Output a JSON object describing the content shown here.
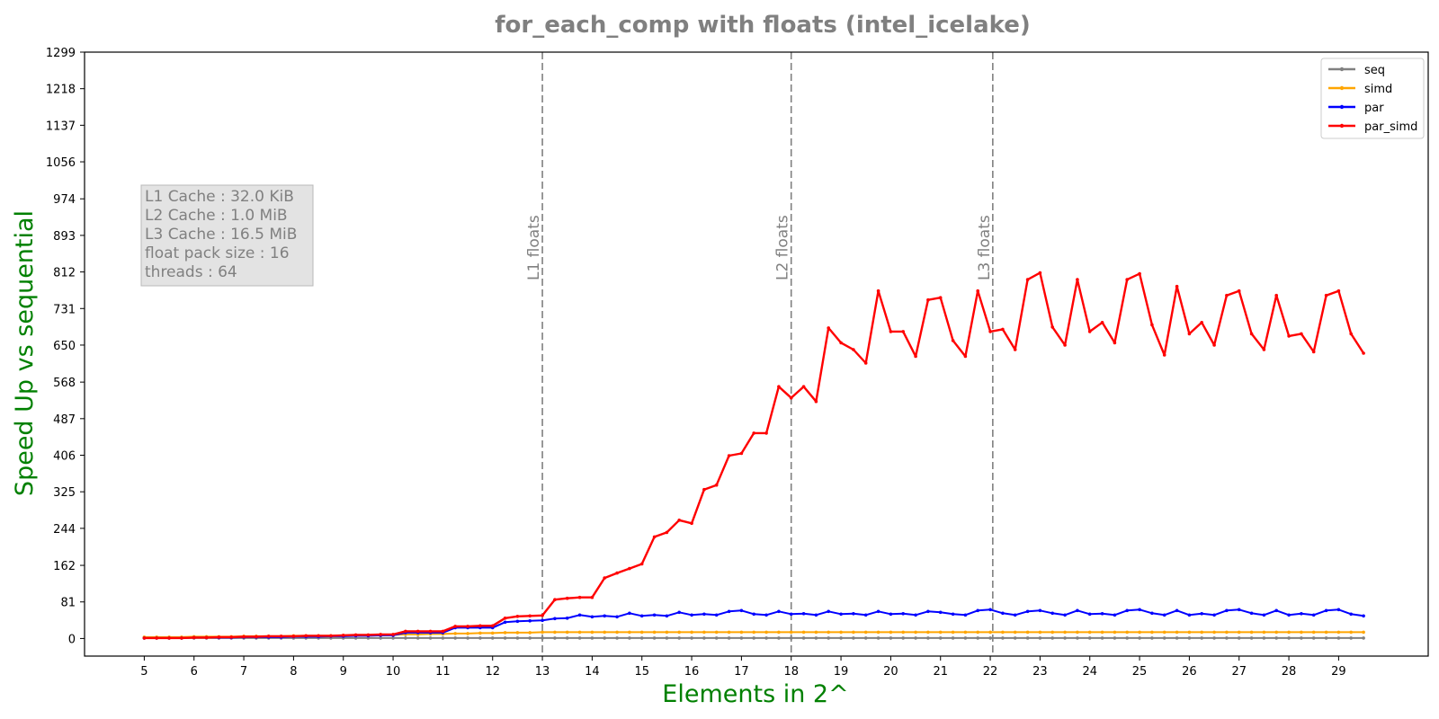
{
  "chart_data": {
    "type": "line",
    "title": "for_each_comp with floats  (intel_icelake)",
    "xlabel": "Elements in 2^",
    "ylabel": "Speed Up vs sequential",
    "xlim": [
      3.8,
      30.8
    ],
    "ylim": [
      -39,
      1299
    ],
    "x_ticks": [
      5,
      6,
      7,
      8,
      9,
      10,
      11,
      12,
      13,
      14,
      15,
      16,
      17,
      18,
      19,
      20,
      21,
      22,
      23,
      24,
      25,
      26,
      27,
      28,
      29
    ],
    "y_ticks": [
      0,
      81,
      162,
      244,
      325,
      406,
      487,
      568,
      650,
      731,
      812,
      893,
      974,
      1056,
      1137,
      1218,
      1299
    ],
    "x": [
      5.0,
      5.25,
      5.5,
      5.75,
      6.0,
      6.25,
      6.5,
      6.75,
      7.0,
      7.25,
      7.5,
      7.75,
      8.0,
      8.25,
      8.5,
      8.75,
      9.0,
      9.25,
      9.5,
      9.75,
      10.0,
      10.25,
      10.5,
      10.75,
      11.0,
      11.25,
      11.5,
      11.75,
      12.0,
      12.25,
      12.5,
      12.75,
      13.0,
      13.25,
      13.5,
      13.75,
      14.0,
      14.25,
      14.5,
      14.75,
      15.0,
      15.25,
      15.5,
      15.75,
      16.0,
      16.25,
      16.5,
      16.75,
      17.0,
      17.25,
      17.5,
      17.75,
      18.0,
      18.25,
      18.5,
      18.75,
      19.0,
      19.25,
      19.5,
      19.75,
      20.0,
      20.25,
      20.5,
      20.75,
      21.0,
      21.25,
      21.5,
      21.75,
      22.0,
      22.25,
      22.5,
      22.75,
      23.0,
      23.25,
      23.5,
      23.75,
      24.0,
      24.25,
      24.5,
      24.75,
      25.0,
      25.25,
      25.5,
      25.75,
      26.0,
      26.25,
      26.5,
      26.75,
      27.0,
      27.25,
      27.5,
      27.75,
      28.0,
      28.25,
      28.5,
      28.75,
      29.0,
      29.25,
      29.5
    ],
    "series": [
      {
        "name": "seq",
        "color": "#808080",
        "values": [
          1,
          1,
          1,
          1,
          1,
          1,
          1,
          1,
          1,
          1,
          1,
          1,
          1,
          1,
          1,
          1,
          1,
          1,
          1,
          1,
          1,
          1,
          1,
          1,
          1,
          1,
          1,
          1,
          1,
          1,
          1,
          1,
          1,
          1,
          1,
          1,
          1,
          1,
          1,
          1,
          1,
          1,
          1,
          1,
          1,
          1,
          1,
          1,
          1,
          1,
          1,
          1,
          1,
          1,
          1,
          1,
          1,
          1,
          1,
          1,
          1,
          1,
          1,
          1,
          1,
          1,
          1,
          1,
          1,
          1,
          1,
          1,
          1,
          1,
          1,
          1,
          1,
          1,
          1,
          1,
          1,
          1,
          1,
          1,
          1,
          1,
          1,
          1,
          1,
          1,
          1,
          1,
          1,
          1,
          1,
          1,
          1,
          1,
          1
        ]
      },
      {
        "name": "simd",
        "color": "#FFA500",
        "values": [
          3,
          3,
          3,
          3,
          4,
          4,
          4,
          4,
          5,
          5,
          5,
          5,
          6,
          6,
          6,
          6,
          7,
          7,
          7,
          7,
          8,
          9,
          9,
          10,
          10,
          11,
          11,
          12,
          12,
          13,
          13,
          13,
          14,
          14,
          14,
          14,
          14,
          14,
          14,
          14,
          14,
          14,
          14,
          14,
          14,
          14,
          14,
          14,
          14,
          14,
          14,
          14,
          14,
          14,
          14,
          14,
          14,
          14,
          14,
          14,
          14,
          14,
          14,
          14,
          14,
          14,
          14,
          14,
          14,
          14,
          14,
          14,
          14,
          14,
          14,
          14,
          14,
          14,
          14,
          14,
          14,
          14,
          14,
          14,
          14,
          14,
          14,
          14,
          14,
          14,
          14,
          14,
          14,
          14,
          14,
          14,
          14,
          14,
          14
        ]
      },
      {
        "name": "par",
        "color": "#0000FF",
        "values": [
          1,
          1,
          1,
          1,
          2,
          2,
          2,
          2,
          3,
          3,
          3,
          3,
          4,
          4,
          4,
          5,
          5,
          6,
          6,
          7,
          7,
          13,
          13,
          13,
          13,
          24,
          24,
          24,
          24,
          36,
          38,
          39,
          40,
          44,
          45,
          52,
          48,
          50,
          48,
          56,
          50,
          52,
          50,
          58,
          52,
          54,
          52,
          60,
          62,
          54,
          52,
          60,
          54,
          55,
          52,
          60,
          54,
          55,
          52,
          60,
          54,
          55,
          52,
          60,
          58,
          54,
          52,
          62,
          64,
          56,
          52,
          60,
          62,
          56,
          52,
          62,
          54,
          55,
          52,
          62,
          64,
          56,
          52,
          62,
          52,
          55,
          52,
          62,
          64,
          56,
          52,
          62,
          52,
          55,
          52,
          62,
          64,
          54,
          50
        ]
      },
      {
        "name": "par_simd",
        "color": "#FF0000",
        "values": [
          1,
          1,
          1,
          1,
          2,
          2,
          3,
          3,
          4,
          4,
          5,
          5,
          5,
          6,
          6,
          6,
          7,
          8,
          8,
          9,
          9,
          16,
          16,
          16,
          16,
          27,
          27,
          28,
          28,
          45,
          49,
          50,
          51,
          86,
          89,
          91,
          91,
          134,
          145,
          155,
          165,
          225,
          235,
          262,
          255,
          330,
          340,
          405,
          410,
          455,
          455,
          558,
          533,
          558,
          525,
          688,
          655,
          640,
          610,
          770,
          680,
          680,
          625,
          750,
          755,
          660,
          625,
          770,
          680,
          685,
          640,
          795,
          810,
          690,
          650,
          795,
          680,
          700,
          655,
          795,
          808,
          695,
          628,
          780,
          675,
          700,
          650,
          760,
          770,
          675,
          640,
          760,
          670,
          675,
          635,
          760,
          770,
          675,
          632
        ]
      }
    ],
    "vlines": [
      {
        "x": 13.0,
        "label": "L1 floats"
      },
      {
        "x": 18.0,
        "label": "L2 floats"
      },
      {
        "x": 22.05,
        "label": "L3 floats"
      }
    ],
    "info_box": [
      "L1 Cache : 32.0 KiB",
      "L2 Cache : 1.0 MiB",
      "L3 Cache : 16.5 MiB",
      "float pack size : 16",
      "threads : 64"
    ],
    "legend": "top-right",
    "grid": false,
    "colors": {
      "title": "#808080",
      "axis_label": "#008000",
      "vline": "#808080",
      "info_text": "#808080",
      "info_bg": "#e3e3e3"
    }
  }
}
